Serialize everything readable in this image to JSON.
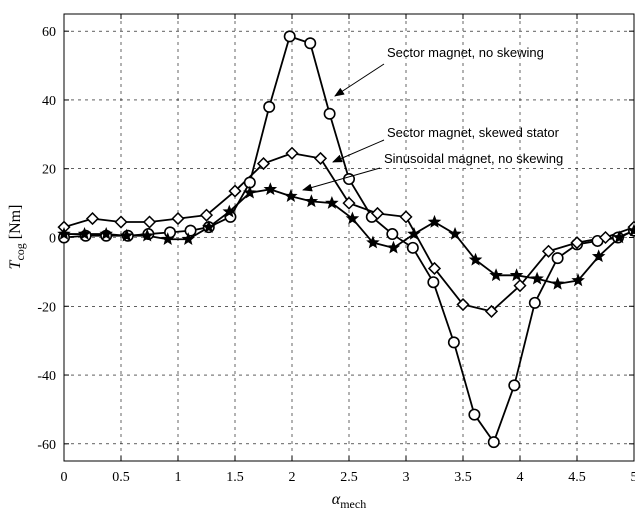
{
  "chart_data": {
    "type": "line",
    "xlabel": "α",
    "xlabel_sub": "mech",
    "ylabel_main": "T",
    "ylabel_sub": "cog",
    "ylabel_unit": " [Nm]",
    "xlim": [
      0,
      5
    ],
    "ylim": [
      -65,
      65
    ],
    "xticks": [
      0,
      0.5,
      1,
      1.5,
      2,
      2.5,
      3,
      3.5,
      4,
      4.5,
      5
    ],
    "xtick_labels": [
      "0",
      "0.5",
      "1",
      "1.5",
      "2",
      "2.5",
      "3",
      "3.5",
      "4",
      "4.5",
      "5"
    ],
    "yticks": [
      -60,
      -40,
      -20,
      0,
      20,
      40,
      60
    ],
    "ytick_labels": [
      "-60",
      "-40",
      "-20",
      "0",
      "20",
      "40",
      "60"
    ],
    "grid": "dashed",
    "series": [
      {
        "marker": "circle",
        "color": "#000000",
        "x": [
          0,
          0.19,
          0.37,
          0.56,
          0.74,
          0.93,
          1.11,
          1.27,
          1.46,
          1.63,
          1.8,
          1.98,
          2.16,
          2.33,
          2.5,
          2.7,
          2.88,
          3.06,
          3.24,
          3.42,
          3.6,
          3.77,
          3.95,
          4.13,
          4.33,
          4.5,
          4.68,
          4.86,
          5.0
        ],
        "y": [
          0,
          0.5,
          0.5,
          0.5,
          1,
          1.5,
          2,
          3,
          6,
          16,
          38,
          58.5,
          56.5,
          36,
          17,
          6,
          1,
          -3,
          -13,
          -30.5,
          -51.5,
          -59.5,
          -43,
          -19,
          -6,
          -2,
          -1,
          0,
          2
        ]
      },
      {
        "marker": "diamond",
        "color": "#000000",
        "x": [
          0,
          0.25,
          0.5,
          0.75,
          1.0,
          1.25,
          1.5,
          1.75,
          2.0,
          2.25,
          2.5,
          2.75,
          3.0,
          3.25,
          3.5,
          3.75,
          4.0,
          4.25,
          4.5,
          4.75,
          5.0
        ],
        "y": [
          3,
          5.5,
          4.5,
          4.5,
          5.5,
          6.5,
          13.5,
          21.5,
          24.5,
          23,
          10,
          7,
          6,
          -9,
          -19.5,
          -21.5,
          -14,
          -4,
          -1.5,
          0,
          3
        ]
      },
      {
        "marker": "star",
        "color": "#000000",
        "x": [
          0,
          0.18,
          0.37,
          0.55,
          0.73,
          0.91,
          1.09,
          1.27,
          1.45,
          1.63,
          1.81,
          1.99,
          2.17,
          2.35,
          2.53,
          2.71,
          2.89,
          3.07,
          3.25,
          3.43,
          3.61,
          3.79,
          3.97,
          4.15,
          4.33,
          4.51,
          4.69,
          4.87,
          5.0
        ],
        "y": [
          1,
          1,
          1,
          0.5,
          0.5,
          -0.5,
          -0.5,
          3,
          7.5,
          13,
          14,
          12,
          10.5,
          10,
          5.5,
          -1.5,
          -3,
          1,
          4.5,
          1,
          -6.5,
          -11,
          -11,
          -12,
          -13.5,
          -12.5,
          -5.5,
          0,
          2
        ]
      }
    ],
    "annotations": [
      {
        "text": "Sector magnet, no skewing",
        "target_series": 0
      },
      {
        "text": "Sector magnet, skewed stator",
        "target_series": 1
      },
      {
        "text": "Sinusoidal magnet, no skewing",
        "target_series": 2
      }
    ]
  }
}
